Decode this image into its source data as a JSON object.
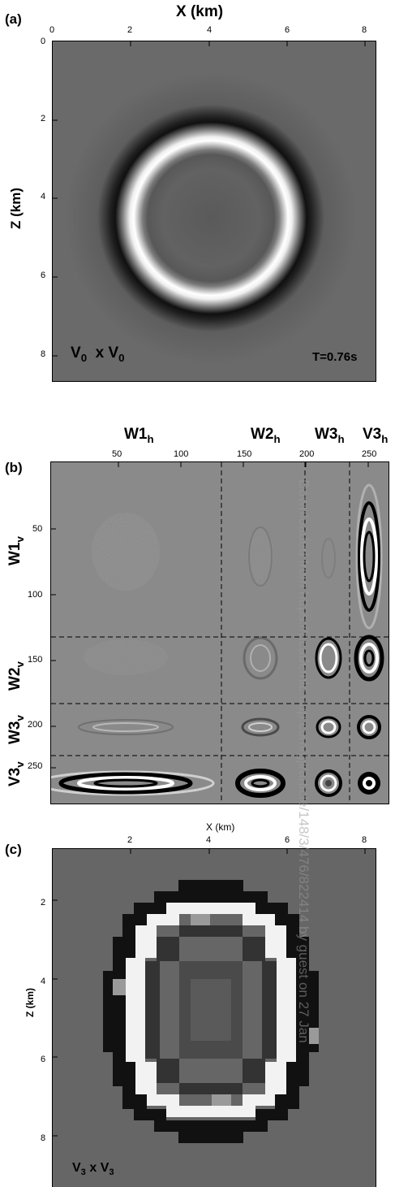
{
  "panel_a": {
    "label": "(a)",
    "xlabel": "X (km)",
    "ylabel": "Z (km)",
    "x_ticks": [
      "0",
      "2",
      "4",
      "6",
      "8"
    ],
    "y_ticks": [
      "0",
      "2",
      "4",
      "6",
      "8"
    ],
    "caption_main": "V",
    "caption_sub1": "0",
    "caption_mid": "  x V",
    "caption_sub2": "0",
    "time": "T=0.76s"
  },
  "panel_b": {
    "label": "(b)",
    "col_headers": [
      {
        "main": "W1",
        "sub": "h"
      },
      {
        "main": "W2",
        "sub": "h"
      },
      {
        "main": "W3",
        "sub": "h"
      },
      {
        "main": "V3",
        "sub": "h"
      }
    ],
    "row_headers": [
      {
        "main": "W1",
        "sub": "v"
      },
      {
        "main": "W2",
        "sub": "v"
      },
      {
        "main": "W3",
        "sub": "v"
      },
      {
        "main": "V3",
        "sub": "v"
      }
    ],
    "x_ticks": [
      "50",
      "100",
      "150",
      "200",
      "250"
    ],
    "y_ticks": [
      "50",
      "100",
      "150",
      "200",
      "250"
    ]
  },
  "panel_c": {
    "label": "(c)",
    "xlabel": "X (km)",
    "ylabel": "Z (km)",
    "x_ticks": [
      "2",
      "4",
      "6",
      "8"
    ],
    "y_ticks": [
      "2",
      "4",
      "6",
      "8"
    ],
    "caption_main": "V",
    "caption_sub1": "3",
    "caption_mid": " x V",
    "caption_sub2": "3"
  },
  "watermark": "Downloaded from https://academic.oup.com/gji/article/148/3/476/822414 by guest on 27 Jan"
}
